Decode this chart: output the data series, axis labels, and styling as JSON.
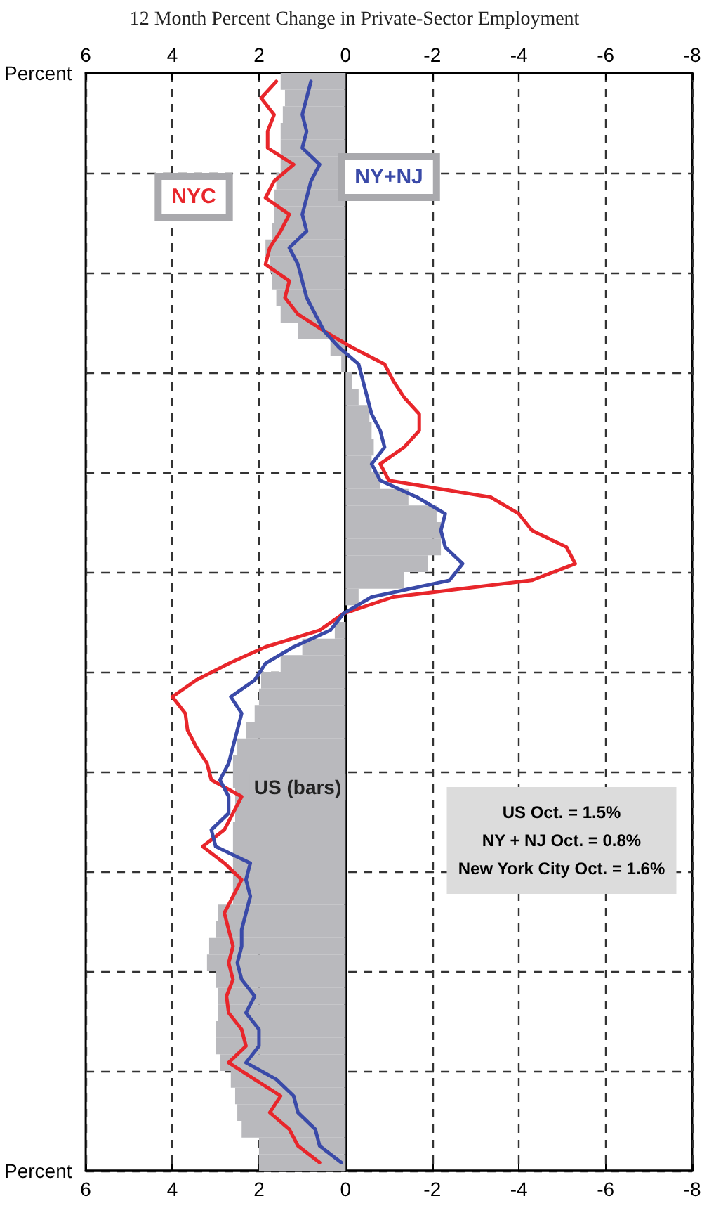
{
  "chart_data": {
    "type": "bar",
    "orientation": "horizontal",
    "title": "12 Month Percent Change in Private-Sector Employment",
    "xlabel": "Percent",
    "x2label": "Percent",
    "categories": [
      null,
      null,
      null,
      null,
      null,
      null,
      null,
      null,
      null,
      null,
      null,
      null,
      null,
      null,
      null,
      null,
      null,
      null,
      null,
      null,
      null,
      null,
      null,
      null,
      null,
      null,
      null,
      null,
      null,
      null,
      null,
      null,
      null,
      null,
      null,
      null,
      null,
      null,
      null,
      null,
      null,
      null,
      null,
      null,
      null,
      null,
      null,
      null,
      null,
      null,
      null,
      null,
      null,
      null,
      null,
      null,
      null,
      null,
      null,
      null,
      null,
      null,
      null,
      null,
      null,
      null
    ],
    "series": [
      {
        "name": "US (bars)",
        "type": "bar",
        "color": "#b9b9bd",
        "values": [
          1.5,
          1.4,
          1.45,
          1.5,
          1.5,
          1.5,
          1.6,
          1.65,
          1.65,
          1.7,
          1.85,
          1.75,
          1.7,
          1.6,
          1.5,
          1.1,
          0.35,
          0.1,
          -0.15,
          -0.3,
          -0.55,
          -0.6,
          -0.65,
          -0.6,
          -0.8,
          -1.45,
          -2.1,
          -2.2,
          -2.2,
          -1.9,
          -1.35,
          -0.3,
          0,
          0.25,
          1.0,
          1.5,
          1.95,
          2.0,
          2.1,
          2.3,
          2.5,
          2.6,
          2.6,
          2.55,
          2.55,
          2.6,
          2.6,
          2.6,
          2.6,
          2.6,
          2.95,
          3.0,
          3.15,
          3.2,
          3.0,
          2.95,
          2.95,
          3.0,
          3.0,
          2.9,
          2.65,
          2.55,
          2.5,
          2.4,
          2.0,
          2.0
        ]
      },
      {
        "name": "NYC",
        "type": "line",
        "color": "#e8262b",
        "values": [
          1.6,
          1.95,
          1.65,
          1.8,
          1.8,
          1.2,
          1.65,
          1.85,
          1.3,
          1.5,
          1.75,
          1.85,
          1.3,
          1.4,
          1.1,
          0.5,
          -0.15,
          -0.9,
          -1.1,
          -1.35,
          -1.7,
          -1.7,
          -1.35,
          -0.8,
          -1.0,
          -3.35,
          -4.0,
          -4.3,
          -5.1,
          -5.3,
          -4.3,
          -1.1,
          0.05,
          0.6,
          1.85,
          2.7,
          3.45,
          4.0,
          3.7,
          3.65,
          3.45,
          3.2,
          3.1,
          2.4,
          2.6,
          2.8,
          3.3,
          2.8,
          2.4,
          2.6,
          2.8,
          2.7,
          2.6,
          2.7,
          2.6,
          2.75,
          2.7,
          2.4,
          2.3,
          2.7,
          2.1,
          1.5,
          1.75,
          1.3,
          1.1,
          0.6
        ]
      },
      {
        "name": "NY+NJ",
        "type": "line",
        "color": "#3a4aa8",
        "values": [
          0.8,
          0.9,
          1.0,
          0.9,
          1.0,
          0.6,
          0.8,
          0.9,
          1.0,
          0.9,
          1.3,
          1.1,
          1.0,
          0.9,
          0.7,
          0.5,
          0.15,
          -0.3,
          -0.4,
          -0.5,
          -0.6,
          -0.8,
          -0.9,
          -0.6,
          -0.8,
          -1.65,
          -2.3,
          -2.2,
          -2.3,
          -2.7,
          -2.4,
          -0.6,
          0.05,
          0.35,
          1.2,
          1.85,
          2.1,
          2.65,
          2.4,
          2.5,
          2.6,
          2.7,
          2.9,
          2.7,
          2.7,
          3.1,
          3.0,
          2.2,
          2.3,
          2.2,
          2.3,
          2.4,
          2.4,
          2.5,
          2.4,
          2.1,
          2.3,
          2.0,
          2.0,
          2.3,
          1.6,
          1.2,
          1.1,
          0.7,
          0.6,
          0.1
        ]
      }
    ],
    "xlim": [
      6,
      -8
    ],
    "xticks": [
      6,
      4,
      2,
      0,
      -2,
      -4,
      -6,
      -8
    ],
    "x2lim": [
      6,
      -8
    ],
    "x2ticks": [
      6,
      4,
      2,
      0,
      -2,
      -4,
      -6,
      -8
    ],
    "annotations": [
      "US Oct. = 1.5%",
      "NY + NJ Oct. = 0.8%",
      "New York City Oct. = 1.6%"
    ],
    "grid": true,
    "tick_labels": "x",
    "marker": "none",
    "line_style": "solid"
  }
}
